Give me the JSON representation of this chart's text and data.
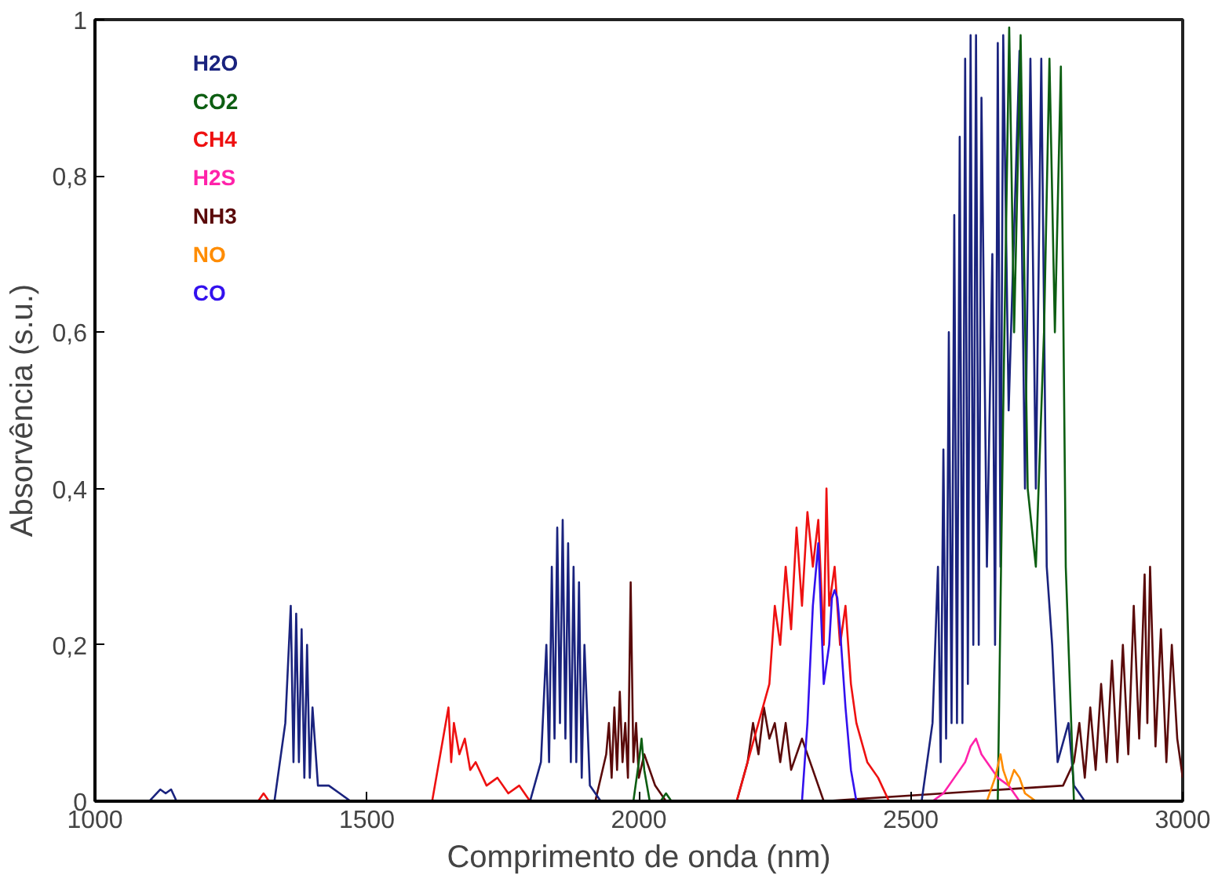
{
  "chart_data": {
    "type": "line",
    "xlabel": "Comprimento de onda (nm)",
    "ylabel": "Absorvência (s.u.)",
    "xlim": [
      1000,
      3000
    ],
    "ylim": [
      0,
      1
    ],
    "xticks": [
      1000,
      1500,
      2000,
      2500,
      3000
    ],
    "yticks": [
      0,
      {
        "value": 0.2,
        "label": "0,2"
      },
      {
        "value": 0.4,
        "label": "0,4"
      },
      {
        "value": 0.6,
        "label": "0,6"
      },
      {
        "value": 0.8,
        "label": "0,8"
      },
      1
    ],
    "grid": false,
    "legend": "top left",
    "line_style": "solid",
    "marker": "none",
    "series": [
      {
        "name": "NH3",
        "color": "#5a0a0a",
        "x": [
          1920,
          1940,
          1945,
          1950,
          1955,
          1960,
          1965,
          1970,
          1975,
          1980,
          1985,
          1990,
          1995,
          2000,
          2010,
          2030,
          2050,
          2180,
          2200,
          2210,
          2220,
          2230,
          2240,
          2250,
          2260,
          2270,
          2280,
          2300,
          2320,
          2340,
          2780,
          2800,
          2810,
          2820,
          2830,
          2840,
          2850,
          2860,
          2870,
          2880,
          2890,
          2900,
          2910,
          2920,
          2930,
          2935,
          2940,
          2950,
          2960,
          2970,
          2980,
          2990,
          3000
        ],
        "values": [
          0,
          0.06,
          0.1,
          0.03,
          0.12,
          0.04,
          0.14,
          0.05,
          0.1,
          0.03,
          0.28,
          0.05,
          0.1,
          0.03,
          0.06,
          0.02,
          0,
          0,
          0.05,
          0.1,
          0.06,
          0.12,
          0.08,
          0.1,
          0.05,
          0.1,
          0.04,
          0.08,
          0.04,
          0,
          0.02,
          0.05,
          0.1,
          0.03,
          0.12,
          0.04,
          0.15,
          0.05,
          0.18,
          0.05,
          0.2,
          0.06,
          0.25,
          0.08,
          0.29,
          0.1,
          0.3,
          0.07,
          0.22,
          0.05,
          0.2,
          0.08,
          0.03
        ]
      },
      {
        "name": "H2O",
        "color": "#1a237e",
        "x": [
          1100,
          1120,
          1130,
          1140,
          1150,
          1330,
          1350,
          1360,
          1365,
          1370,
          1375,
          1380,
          1385,
          1390,
          1395,
          1400,
          1410,
          1430,
          1450,
          1470,
          1800,
          1820,
          1830,
          1835,
          1840,
          1845,
          1850,
          1855,
          1860,
          1865,
          1870,
          1875,
          1880,
          1885,
          1890,
          1895,
          1900,
          1910,
          1930,
          2520,
          2540,
          2550,
          2555,
          2560,
          2565,
          2570,
          2575,
          2580,
          2585,
          2590,
          2595,
          2600,
          2605,
          2610,
          2615,
          2620,
          2625,
          2630,
          2640,
          2650,
          2655,
          2660,
          2665,
          2670,
          2680,
          2700,
          2710,
          2720,
          2730,
          2740,
          2750,
          2760,
          2770,
          2790,
          2800,
          2820
        ],
        "values": [
          0,
          0.015,
          0.01,
          0.015,
          0,
          0,
          0.1,
          0.25,
          0.05,
          0.24,
          0.05,
          0.22,
          0.03,
          0.2,
          0.03,
          0.12,
          0.02,
          0.02,
          0.01,
          0,
          0,
          0.05,
          0.2,
          0.05,
          0.3,
          0.08,
          0.35,
          0.1,
          0.36,
          0.08,
          0.33,
          0.05,
          0.3,
          0.05,
          0.28,
          0.03,
          0.2,
          0.02,
          0,
          0,
          0.1,
          0.3,
          0.05,
          0.45,
          0.08,
          0.6,
          0.1,
          0.75,
          0.1,
          0.85,
          0.1,
          0.95,
          0.15,
          0.98,
          0.2,
          0.98,
          0.2,
          0.9,
          0.3,
          0.7,
          0.2,
          0.97,
          0.3,
          0.98,
          0.5,
          0.96,
          0.4,
          0.95,
          0.4,
          0.95,
          0.3,
          0.2,
          0.05,
          0.1,
          0.02,
          0
        ]
      },
      {
        "name": "CO2",
        "color": "#0d5e12",
        "x": [
          1990,
          2000,
          2005,
          2010,
          2020,
          2040,
          2050,
          2060,
          2660,
          2670,
          2681,
          2690,
          2702,
          2715,
          2730,
          2745,
          2755,
          2765,
          2776,
          2785,
          2800
        ],
        "values": [
          0,
          0.05,
          0.08,
          0.04,
          0,
          0,
          0.01,
          0,
          0,
          0.5,
          0.99,
          0.6,
          0.98,
          0.4,
          0.3,
          0.6,
          0.95,
          0.6,
          0.94,
          0.3,
          0
        ]
      },
      {
        "name": "CH4",
        "color": "#ee1111",
        "x": [
          1300,
          1310,
          1320,
          1620,
          1640,
          1650,
          1655,
          1660,
          1670,
          1680,
          1690,
          1700,
          1720,
          1740,
          1760,
          1780,
          1800,
          2180,
          2200,
          2220,
          2240,
          2250,
          2260,
          2270,
          2280,
          2290,
          2300,
          2310,
          2320,
          2330,
          2340,
          2345,
          2350,
          2360,
          2370,
          2380,
          2390,
          2400,
          2420,
          2440,
          2460
        ],
        "values": [
          0,
          0.01,
          0,
          0,
          0.08,
          0.12,
          0.05,
          0.1,
          0.06,
          0.08,
          0.04,
          0.05,
          0.02,
          0.03,
          0.01,
          0.02,
          0,
          0,
          0.05,
          0.1,
          0.15,
          0.25,
          0.2,
          0.3,
          0.22,
          0.35,
          0.25,
          0.37,
          0.3,
          0.36,
          0.2,
          0.4,
          0.25,
          0.3,
          0.2,
          0.25,
          0.15,
          0.1,
          0.05,
          0.03,
          0
        ]
      },
      {
        "name": "H2S",
        "color": "#ff22aa",
        "x": [
          2540,
          2560,
          2580,
          2600,
          2610,
          2620,
          2630,
          2640,
          2660,
          2680,
          2700
        ],
        "values": [
          0,
          0.01,
          0.03,
          0.05,
          0.07,
          0.08,
          0.06,
          0.05,
          0.03,
          0.02,
          0
        ]
      },
      {
        "name": "NO",
        "color": "#ff8c00",
        "x": [
          2640,
          2655,
          2665,
          2670,
          2680,
          2690,
          2700,
          2710,
          2730
        ],
        "values": [
          0,
          0.03,
          0.06,
          0.04,
          0.02,
          0.04,
          0.03,
          0.01,
          0
        ]
      },
      {
        "name": "CO",
        "color": "#3311ee",
        "x": [
          2300,
          2310,
          2320,
          2330,
          2340,
          2350,
          2355,
          2360,
          2365,
          2370,
          2380,
          2390,
          2400
        ],
        "values": [
          0,
          0.1,
          0.25,
          0.33,
          0.15,
          0.2,
          0.26,
          0.27,
          0.26,
          0.22,
          0.12,
          0.04,
          0
        ]
      }
    ]
  }
}
